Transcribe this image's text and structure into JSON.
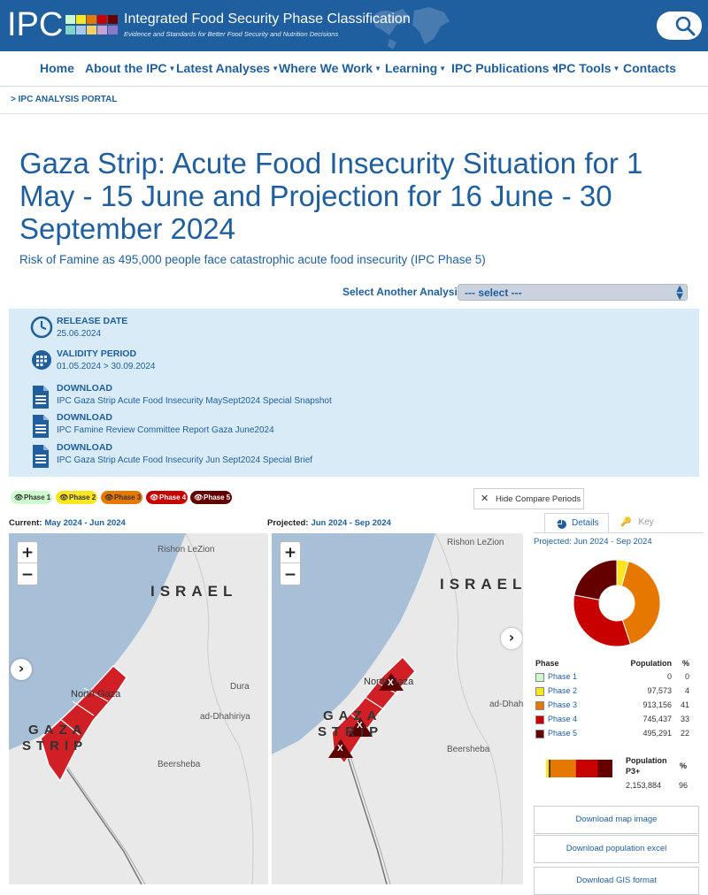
{
  "header": {
    "logo_text": "IPC",
    "site_title": "Integrated Food Security Phase Classification",
    "site_tagline": "Evidence and Standards for Better Food Security and Nutrition Decisions",
    "swatch_colors": [
      "#cdfacd",
      "#fae61e",
      "#e67800",
      "#c80000",
      "#640000",
      "#7fd6c8",
      "#a6c8ea",
      "#f5d066",
      "#c8a0d2",
      "#8c78c8"
    ]
  },
  "nav": {
    "items": [
      {
        "label": "Home"
      },
      {
        "label": "About the IPC"
      },
      {
        "label": "Latest Analyses"
      },
      {
        "label": "Where We Work"
      },
      {
        "label": "Learning"
      },
      {
        "label": "IPC Publications"
      },
      {
        "label": "IPC Tools"
      },
      {
        "label": "Contacts"
      }
    ]
  },
  "breadcrumb": "> IPC ANALYSIS PORTAL",
  "page": {
    "title": "Gaza Strip: Acute Food Insecurity Situation for 1 May - 15 June and Projection for 16 June - 30 September 2024",
    "subtitle": "Risk of Famine as 495,000 people face catastrophic acute food insecurity (IPC Phase 5)"
  },
  "analysis_select": {
    "label": "Select Another Analysis:",
    "value": "--- select ---"
  },
  "info": {
    "release_label": "RELEASE DATE",
    "release_value": "25.06.2024",
    "validity_label": "VALIDITY PERIOD",
    "validity_value": "01.05.2024 > 30.09.2024",
    "downloads": [
      {
        "label": "DOWNLOAD",
        "title": "IPC Gaza Strip Acute Food Insecurity MaySept2024 Special Snapshot"
      },
      {
        "label": "DOWNLOAD",
        "title": "IPC Famine Review Committee Report Gaza June2024"
      },
      {
        "label": "DOWNLOAD",
        "title": "IPC Gaza Strip Acute Food Insecurity Jun Sept2024 Special Brief"
      }
    ]
  },
  "phase_filters": [
    {
      "label": "Phase 1",
      "color": "#cdfacd",
      "text_color": "#333333"
    },
    {
      "label": "Phase 2",
      "color": "#fae61e",
      "text_color": "#333333"
    },
    {
      "label": "Phase 3",
      "color": "#e67800",
      "text_color": "#333333"
    },
    {
      "label": "Phase 4",
      "color": "#c80000",
      "text_color": "#ffffff"
    },
    {
      "label": "Phase 5",
      "color": "#640000",
      "text_color": "#ffffff"
    }
  ],
  "hide_compare_label": "Hide Compare Periods",
  "maps": {
    "current_prefix": "Current:",
    "current_period": "May 2024 - Jun 2024",
    "projected_prefix": "Projected:",
    "projected_period": "Jun 2024 - Sep 2024",
    "zoom_in": "+",
    "zoom_out": "−",
    "places": {
      "rishon": "Rishon LeZion",
      "israel": "ISRAEL",
      "north_gaza": "North Gaza",
      "dura": "Dura",
      "dhahiriya": "ad-Dhahiriya",
      "dhah_short": "ad-Dhah",
      "gaza": "GAZA",
      "strip": "STRIP",
      "beersheba": "Beersheba",
      "famine_mark": "X"
    }
  },
  "side_panel": {
    "tab_details": "Details",
    "tab_key": "Key",
    "period": "Projected: Jun 2024 - Sep 2024",
    "table_headers": {
      "phase": "Phase",
      "population": "Population",
      "pct": "%"
    },
    "rows": [
      {
        "phase": "Phase 1",
        "population": "0",
        "pct": "0",
        "color": "#cdfacd"
      },
      {
        "phase": "Phase 2",
        "population": "97,573",
        "pct": "4",
        "color": "#fae61e"
      },
      {
        "phase": "Phase 3",
        "population": "913,156",
        "pct": "41",
        "color": "#e67800"
      },
      {
        "phase": "Phase 4",
        "population": "745,437",
        "pct": "33",
        "color": "#c80000"
      },
      {
        "phase": "Phase 5",
        "population": "495,291",
        "pct": "22",
        "color": "#640000"
      }
    ],
    "p3_header_line1": "Population",
    "p3_header_line2": "P3+",
    "p3_pct_header": "%",
    "p3_population": "2,153,884",
    "p3_pct": "96",
    "downloads": [
      "Download map image",
      "Download population excel",
      "Download GIS format"
    ]
  },
  "chart_data": {
    "type": "pie",
    "title": "Projected: Jun 2024 - Sep 2024",
    "categories": [
      "Phase 1",
      "Phase 2",
      "Phase 3",
      "Phase 4",
      "Phase 5"
    ],
    "values": [
      0,
      97573,
      913156,
      745437,
      495291
    ],
    "colors": [
      "#cdfacd",
      "#fae61e",
      "#e67800",
      "#c80000",
      "#640000"
    ],
    "donut": true
  }
}
